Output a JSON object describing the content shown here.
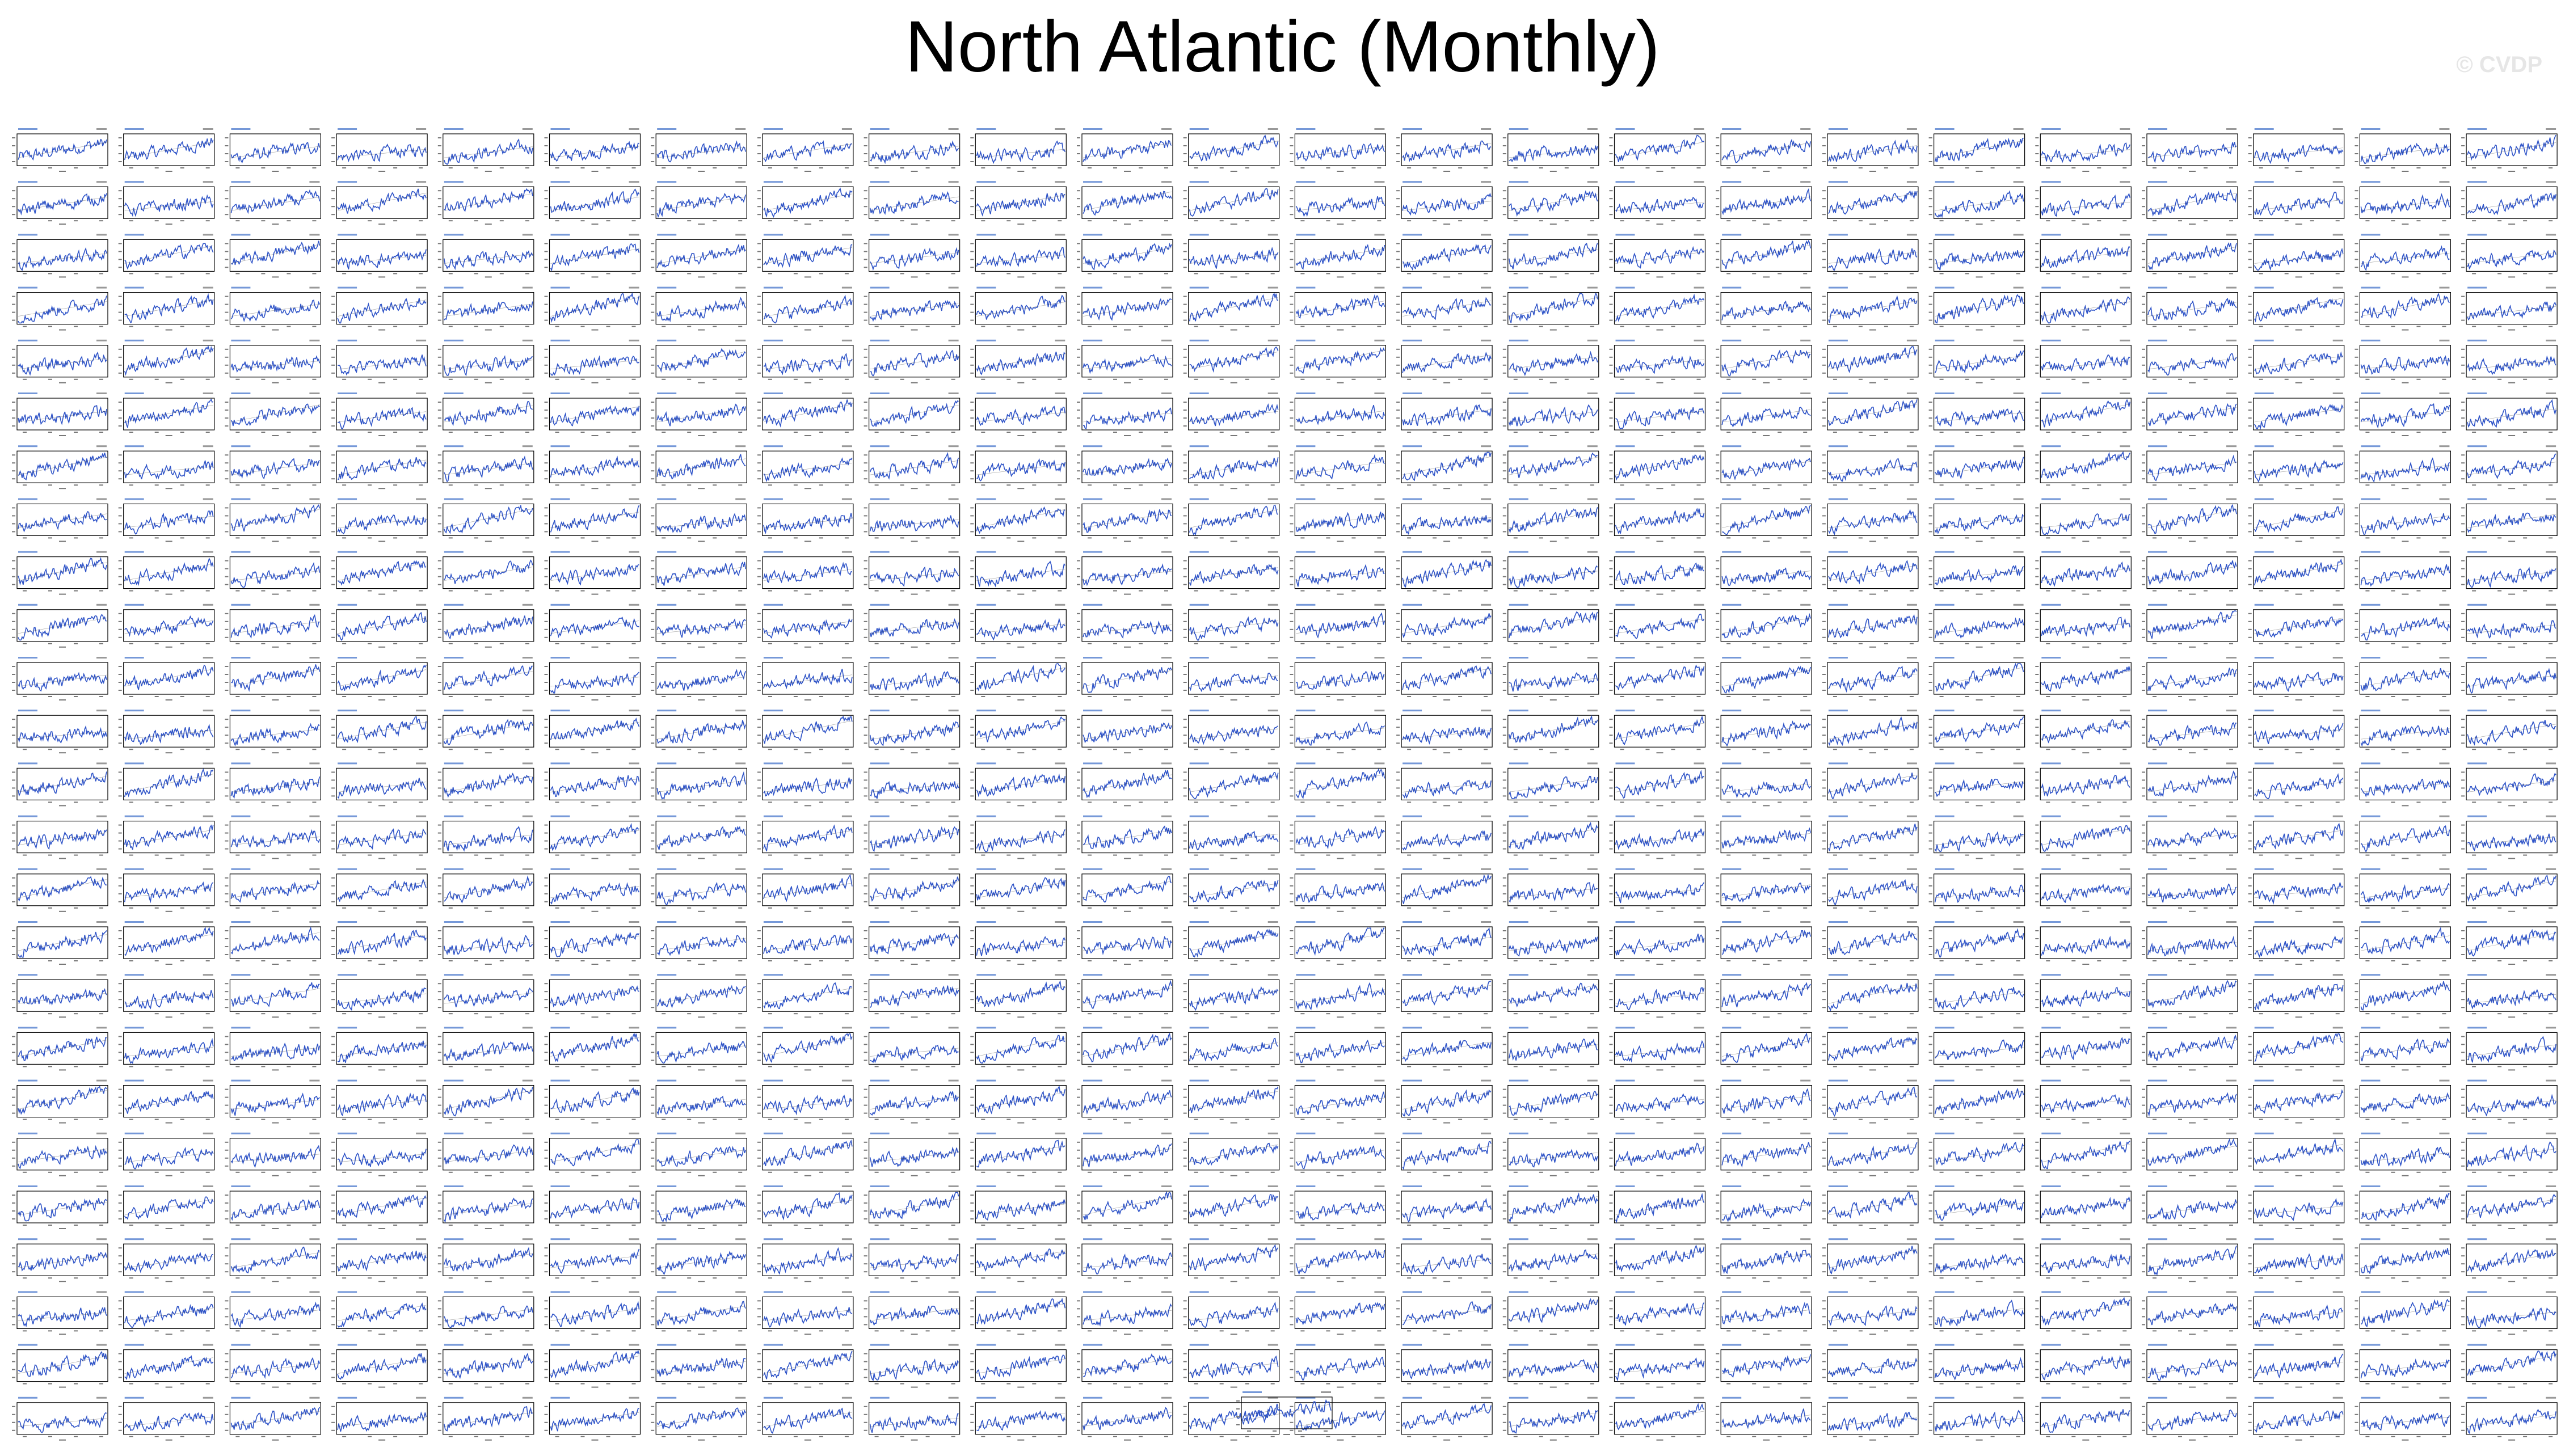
{
  "page": {
    "title": "North Atlantic (Monthly)",
    "watermark": "© CVDP"
  },
  "colors": {
    "series": "#2f54c8",
    "axes": "#000000",
    "panel_title": "#3a6cc8",
    "background": "#ffffff"
  },
  "chart_data": {
    "type": "line",
    "title": "North Atlantic (Monthly)",
    "panel_rows": 25,
    "panel_cols": 24,
    "extra_panels_bottom_center": 1,
    "total_panels": 601,
    "per_panel": {
      "type": "line",
      "description_of_series": "monthly time series with upward trend",
      "grid": false
    }
  }
}
